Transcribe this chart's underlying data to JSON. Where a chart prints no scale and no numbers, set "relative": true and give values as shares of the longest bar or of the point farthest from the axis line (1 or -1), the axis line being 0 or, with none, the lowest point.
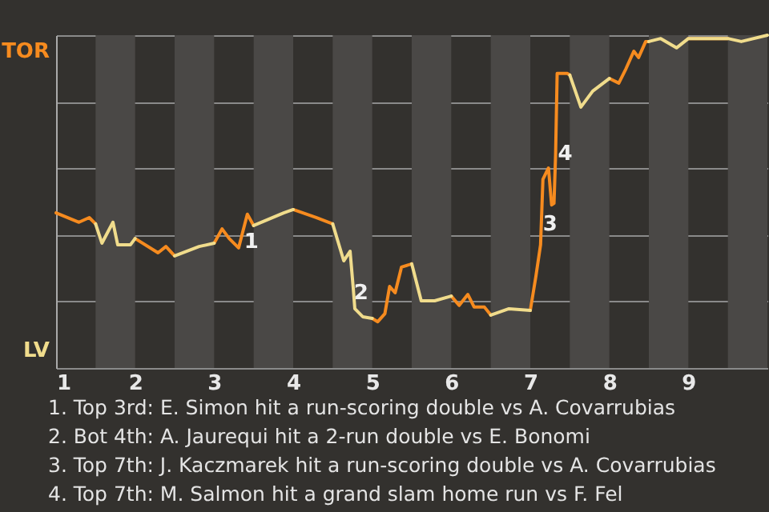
{
  "chart_data": {
    "type": "line",
    "x": [
      1,
      1.29,
      1.42,
      1.5,
      1.58,
      1.72,
      1.78,
      1.94,
      2,
      2.29,
      2.39,
      2.5,
      2.81,
      3,
      3.1,
      3.19,
      3.31,
      3.42,
      3.5,
      3.88,
      4,
      4.29,
      4.5,
      4.64,
      4.72,
      4.76,
      4.78,
      4.88,
      5,
      5.07,
      5.16,
      5.22,
      5.29,
      5.37,
      5.5,
      5.62,
      5.79,
      6,
      6.1,
      6.21,
      6.29,
      6.42,
      6.5,
      6.73,
      7,
      7.07,
      7.13,
      7.16,
      7.23,
      7.27,
      7.3,
      7.32,
      7.34,
      7.47,
      7.5,
      7.64,
      7.79,
      8,
      8.12,
      8.21,
      8.31,
      8.37,
      8.46,
      8.5,
      8.65,
      8.85,
      9,
      9.5,
      9.67,
      10
    ],
    "series": [
      {
        "color": "#f68b1f",
        "values": [
          0.466,
          0.438,
          0.452,
          0.433,
          null,
          null,
          null,
          null,
          0.389,
          0.346,
          0.365,
          0.337,
          null,
          0.375,
          0.418,
          0.389,
          0.361,
          0.462,
          0.428,
          null,
          0.476,
          0.452,
          0.433,
          null,
          null,
          null,
          null,
          null,
          0.149,
          0.139,
          0.163,
          0.245,
          0.226,
          0.303,
          0.313,
          null,
          null,
          0.216,
          0.188,
          0.221,
          0.183,
          0.183,
          0.159,
          null,
          0.173,
          0.274,
          0.37,
          0.567,
          0.601,
          0.49,
          0.495,
          0.639,
          0.885,
          0.885,
          0.88,
          null,
          null,
          0.87,
          0.856,
          0.899,
          0.952,
          0.933,
          0.981,
          0.981,
          null,
          null,
          0.99,
          0.99,
          null,
          null
        ]
      },
      {
        "color": "#f0dc8c",
        "values": [
          null,
          null,
          null,
          0.433,
          0.375,
          0.438,
          0.37,
          0.37,
          0.389,
          null,
          null,
          0.337,
          0.365,
          0.375,
          null,
          null,
          null,
          null,
          0.428,
          0.466,
          0.476,
          null,
          0.433,
          0.322,
          0.351,
          0.24,
          0.178,
          0.154,
          0.149,
          null,
          null,
          null,
          null,
          null,
          0.313,
          0.202,
          0.202,
          0.216,
          null,
          null,
          null,
          null,
          0.159,
          0.178,
          0.173,
          null,
          null,
          null,
          null,
          null,
          null,
          null,
          null,
          null,
          0.88,
          0.784,
          0.832,
          0.87,
          null,
          null,
          null,
          null,
          null,
          0.981,
          0.99,
          0.962,
          0.99,
          0.99,
          0.981,
          1.0
        ]
      }
    ],
    "relative": true,
    "xlim": [
      1,
      10
    ],
    "xticks": [
      1,
      2,
      3,
      4,
      5,
      6,
      7,
      8,
      9
    ],
    "grid": "y",
    "bands": [
      {
        "axis": "x",
        "from": 1.5,
        "to": 2,
        "color": "#4a4846"
      },
      {
        "axis": "x",
        "from": 2.5,
        "to": 3,
        "color": "#4a4846"
      },
      {
        "axis": "x",
        "from": 3.5,
        "to": 4,
        "color": "#4a4846"
      },
      {
        "axis": "x",
        "from": 4.5,
        "to": 5,
        "color": "#4a4846"
      },
      {
        "axis": "x",
        "from": 5.5,
        "to": 6,
        "color": "#4a4846"
      },
      {
        "axis": "x",
        "from": 6.5,
        "to": 7,
        "color": "#4a4846"
      },
      {
        "axis": "x",
        "from": 7.5,
        "to": 8,
        "color": "#4a4846"
      },
      {
        "axis": "x",
        "from": 8.5,
        "to": 9,
        "color": "#4a4846"
      },
      {
        "axis": "x",
        "from": 9.5,
        "to": 10,
        "color": "#4a4846"
      }
    ],
    "annotations": [
      "TOR",
      "LV",
      {
        "text": "1",
        "x": 3.47,
        "y": 0.38
      },
      {
        "text": "2",
        "x": 4.86,
        "y": 0.226
      },
      {
        "text": "3",
        "x": 7.25,
        "y": 0.433
      },
      {
        "text": "4",
        "x": 7.44,
        "y": 0.644
      },
      "1. Top 3rd: E. Simon hit a run-scoring double vs A. Covarrubias",
      "2. Bot 4th: A. Jaurequi hit a 2-run double vs E. Bonomi",
      "3. Top 7th: J. Kaczmarek hit a run-scoring double vs A. Covarrubias",
      "4. Top 7th: M. Salmon hit a grand slam home run vs F. Fel"
    ]
  }
}
